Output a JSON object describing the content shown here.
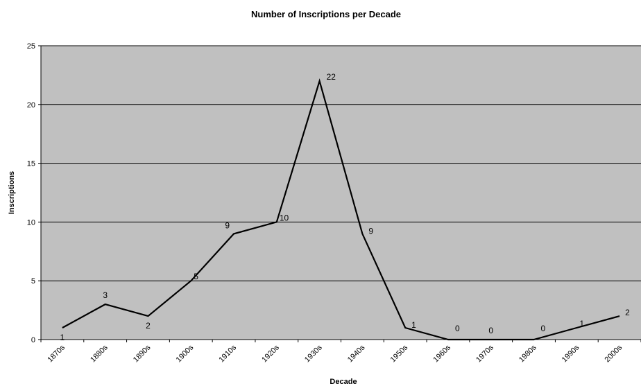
{
  "chart_data": {
    "type": "line",
    "title": "Number of Inscriptions per Decade",
    "xlabel": "Decade",
    "ylabel": "Inscriptions",
    "categories": [
      "1870s",
      "1880s",
      "1890s",
      "1900s",
      "1910s",
      "1920s",
      "1930s",
      "1940s",
      "1950s",
      "1960s",
      "1970s",
      "1980s",
      "1990s",
      "2000s"
    ],
    "series": [
      {
        "values": [
          1,
          3,
          2,
          5,
          9,
          10,
          22,
          9,
          1,
          0,
          0,
          0,
          1,
          2
        ]
      }
    ],
    "y_ticks": [
      "0",
      "5",
      "10",
      "15",
      "20",
      "25"
    ],
    "data_labels": [
      "1",
      "3",
      "2",
      "5",
      "9",
      "10",
      "22",
      "9",
      "1",
      "0",
      "0",
      "0",
      "1",
      "2"
    ],
    "ylim": [
      0,
      25
    ],
    "grid": "horizontal",
    "legend": "none",
    "colors": {
      "plot_background": "#c0c0c0",
      "line": "#000000",
      "gridline": "#000000"
    }
  }
}
